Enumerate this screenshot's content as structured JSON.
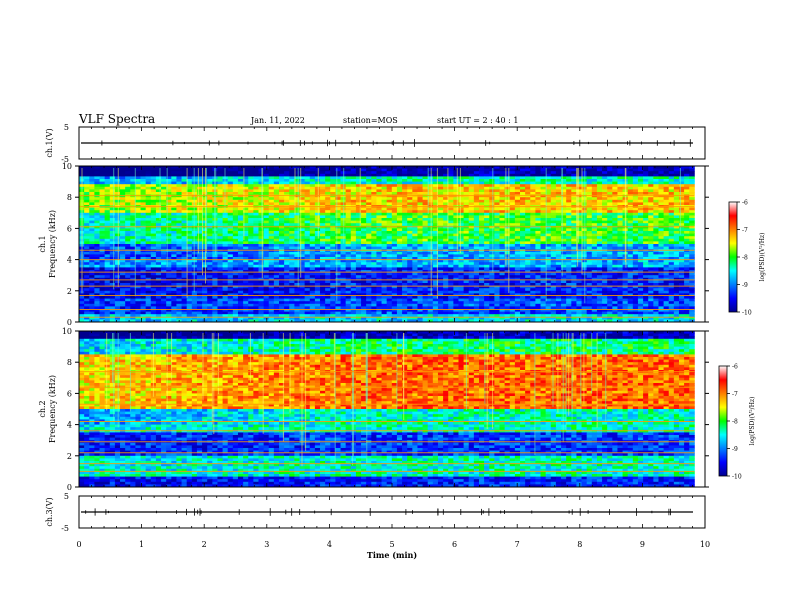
{
  "header": {
    "title": "VLF Spectra",
    "date": "Jan. 11, 2022",
    "station": "station=MOS",
    "start": "start UT =  2 : 40 : 1"
  },
  "chart_data": [
    {
      "type": "line",
      "name": "ch1-waveform",
      "ylabel": "ch.1(V)",
      "ylim": [
        -5,
        5
      ],
      "y_ticks": [
        "5",
        "-5"
      ],
      "x_range_min": [
        0,
        10
      ],
      "baseline_v": 0
    },
    {
      "type": "heatmap",
      "name": "ch1-spectrogram",
      "ylabel_line1": "ch.1",
      "ylabel_line2": "Frequency (kHz)",
      "ylim_khz": [
        0,
        10
      ],
      "y_ticks": [
        "0",
        "2",
        "4",
        "6",
        "8",
        "10"
      ],
      "data_end_min": 9.83,
      "colorbar": {
        "label": "log(PSD)(V²/Hz)",
        "range": [
          -10,
          -6
        ],
        "ticks": [
          "-6",
          "-7",
          "-8",
          "-9",
          "-10"
        ]
      },
      "band_levels_by_khz": [
        {
          "from": 0.0,
          "to": 0.5,
          "level": -8.6
        },
        {
          "from": 0.5,
          "to": 1.5,
          "level": -9.2
        },
        {
          "from": 1.5,
          "to": 3.5,
          "level": -9.4
        },
        {
          "from": 3.5,
          "to": 5.0,
          "level": -8.8
        },
        {
          "from": 5.0,
          "to": 7.0,
          "level": -8.0
        },
        {
          "from": 7.0,
          "to": 8.8,
          "level": -7.3
        },
        {
          "from": 8.8,
          "to": 9.3,
          "level": -8.4
        },
        {
          "from": 9.3,
          "to": 10.0,
          "level": -9.9
        }
      ],
      "constant_lines_khz": [
        0.3,
        0.8,
        1.7,
        2.3,
        2.7,
        3.2,
        4.0,
        4.6,
        6.1,
        7.4,
        8.1
      ]
    },
    {
      "type": "heatmap",
      "name": "ch2-spectrogram",
      "ylabel_line1": "ch.2",
      "ylabel_line2": "Frequency (kHz)",
      "ylim_khz": [
        0,
        10
      ],
      "y_ticks": [
        "0",
        "2",
        "4",
        "6",
        "8",
        "10"
      ],
      "data_end_min": 9.83,
      "colorbar": {
        "label": "log(PSD)(V²/Hz)",
        "range": [
          -10,
          -6
        ],
        "ticks": [
          "-6",
          "-7",
          "-8",
          "-9",
          "-10"
        ]
      },
      "band_levels_by_khz": [
        {
          "from": 0.0,
          "to": 0.6,
          "level": -9.4
        },
        {
          "from": 0.6,
          "to": 2.0,
          "level": -8.4
        },
        {
          "from": 2.0,
          "to": 3.5,
          "level": -9.3
        },
        {
          "from": 3.5,
          "to": 5.0,
          "level": -8.4
        },
        {
          "from": 5.0,
          "to": 8.5,
          "level": -6.9
        },
        {
          "from": 8.5,
          "to": 9.5,
          "level": -8.2
        },
        {
          "from": 9.5,
          "to": 10.0,
          "level": -9.8
        }
      ],
      "constant_lines_khz": [
        1.0,
        1.5,
        2.2,
        2.9,
        3.6,
        4.2,
        5.3,
        6.4,
        7.4
      ]
    },
    {
      "type": "line",
      "name": "ch3-waveform",
      "ylabel": "ch.3(V)",
      "ylim": [
        -5,
        5
      ],
      "y_ticks": [
        "5",
        "-5"
      ],
      "x_range_min": [
        0,
        10
      ],
      "baseline_v": 0
    }
  ],
  "xaxis": {
    "label": "Time (min)",
    "range": [
      0,
      10
    ],
    "ticks": [
      "0",
      "1",
      "2",
      "3",
      "4",
      "5",
      "6",
      "7",
      "8",
      "9",
      "10"
    ]
  }
}
